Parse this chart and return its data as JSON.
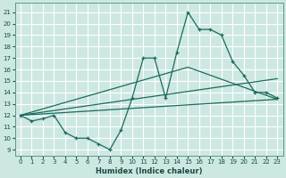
{
  "xlabel": "Humidex (Indice chaleur)",
  "bg_color": "#cde8e2",
  "grid_color": "#ffffff",
  "line_color": "#1a6b5e",
  "xlim": [
    -0.5,
    23.5
  ],
  "ylim": [
    8.5,
    21.8
  ],
  "xticks": [
    0,
    1,
    2,
    3,
    4,
    5,
    6,
    7,
    8,
    9,
    10,
    11,
    12,
    13,
    14,
    15,
    16,
    17,
    18,
    19,
    20,
    21,
    22,
    23
  ],
  "yticks": [
    9,
    10,
    11,
    12,
    13,
    14,
    15,
    16,
    17,
    18,
    19,
    20,
    21
  ],
  "main_x": [
    0,
    1,
    2,
    3,
    4,
    5,
    6,
    7,
    8,
    9,
    10,
    11,
    12,
    13,
    14,
    15,
    16,
    17,
    18,
    19,
    20,
    21,
    22,
    23
  ],
  "main_y": [
    12.0,
    11.5,
    11.7,
    12.0,
    10.5,
    10.0,
    10.0,
    9.5,
    9.0,
    10.7,
    13.5,
    17.0,
    17.0,
    13.5,
    17.5,
    21.0,
    19.5,
    19.5,
    19.0,
    16.7,
    15.5,
    14.0,
    14.0,
    13.5
  ],
  "trend1_x": [
    0,
    23
  ],
  "trend1_y": [
    12.0,
    13.4
  ],
  "trend2_x": [
    0,
    23
  ],
  "trend2_y": [
    12.0,
    15.2
  ],
  "trend3_x": [
    0,
    15,
    23
  ],
  "trend3_y": [
    12.0,
    16.2,
    13.4
  ]
}
